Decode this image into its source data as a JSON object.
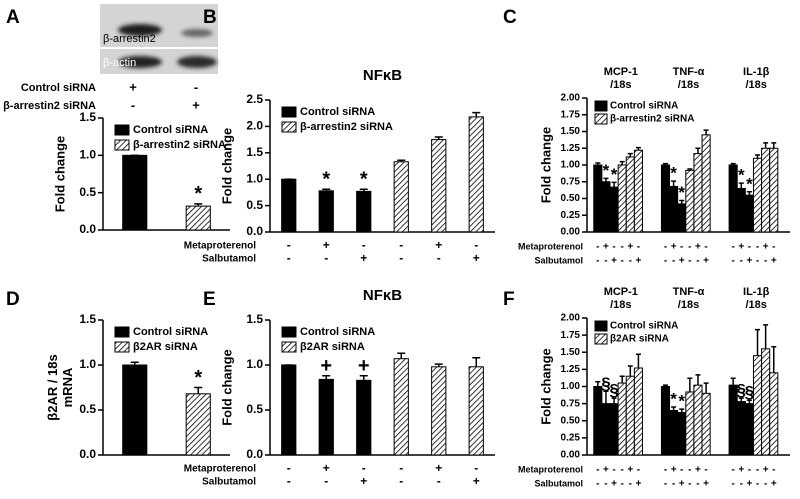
{
  "chart_data": [
    {
      "type": "bar",
      "panel_label": "A",
      "ylabel": [
        "Fold change"
      ],
      "blot": {
        "labels": [
          "β-arrestin2",
          "β-actin"
        ],
        "conditions": [
          {
            "name": "Control siRNA",
            "marks": [
              "+",
              "-"
            ]
          },
          {
            "name": "β-arrestin2 siRNA",
            "marks": [
              "-",
              "+"
            ]
          }
        ]
      },
      "categories": [
        null,
        null
      ],
      "series": [
        {
          "name": "Control siRNA",
          "color": "#000000",
          "values": [
            1.0,
            null
          ],
          "errors": [
            0,
            null
          ],
          "annotations": [
            null,
            null
          ]
        },
        {
          "name": "β-arrestin2 siRNA",
          "color": "#000000",
          "hatch": true,
          "values": [
            null,
            0.32
          ],
          "errors": [
            null,
            0.03
          ],
          "annotations": [
            null,
            "*"
          ]
        }
      ],
      "ylim": [
        0,
        1.5
      ],
      "yticks": [
        {
          "value": 0,
          "label": "0.0"
        },
        {
          "value": 0.5,
          "label": "0.5"
        },
        {
          "value": 1,
          "label": "1.0"
        },
        {
          "value": 1.5,
          "label": "1.5"
        }
      ],
      "legend": "upper left"
    },
    {
      "type": "bar",
      "panel_label": "B",
      "title": "NFκB",
      "ylabel": [
        "Fold change"
      ],
      "categories": [
        null,
        null,
        null,
        null,
        null,
        null
      ],
      "series": [
        {
          "name": "Control siRNA",
          "color": "#000000",
          "values": [
            1.0,
            0.78,
            0.77,
            null,
            null,
            null
          ],
          "errors": [
            0,
            0.03,
            0.04,
            null,
            null,
            null
          ],
          "annotations": [
            null,
            "*",
            "*",
            null,
            null,
            null
          ]
        },
        {
          "name": "β-arrestin2 siRNA",
          "color": "#000000",
          "hatch": true,
          "values": [
            null,
            null,
            null,
            1.33,
            1.75,
            2.18
          ],
          "errors": [
            null,
            null,
            null,
            0.03,
            0.05,
            0.08
          ],
          "annotations": [
            null,
            null,
            null,
            null,
            null,
            null
          ]
        }
      ],
      "ylim": [
        0,
        2.5
      ],
      "yticks": [
        {
          "value": 0,
          "label": "0.0"
        },
        {
          "value": 0.5,
          "label": "0.5"
        },
        {
          "value": 1,
          "label": "1.0"
        },
        {
          "value": 1.5,
          "label": "1.5"
        },
        {
          "value": 2,
          "label": "2.0"
        },
        {
          "value": 2.5,
          "label": "2.5"
        }
      ],
      "legend": "upper left",
      "conditions": [
        {
          "name": "Metaproterenol",
          "marks": [
            "-",
            "+",
            "-",
            "-",
            "+",
            "-"
          ]
        },
        {
          "name": "Salbutamol",
          "marks": [
            "-",
            "-",
            "+",
            "-",
            "-",
            "+"
          ]
        }
      ]
    },
    {
      "type": "bar",
      "panel_label": "C",
      "ylabel": [
        "Fold change"
      ],
      "group_labels": [
        [
          "MCP-1",
          "/18s"
        ],
        [
          "TNF-α",
          "/18s"
        ],
        [
          "IL-1β",
          "/18s"
        ]
      ],
      "categories": [
        null,
        null,
        null,
        null,
        null,
        null,
        null,
        null,
        null,
        null,
        null,
        null,
        null,
        null,
        null,
        null,
        null,
        null
      ],
      "series": [
        {
          "name": "Control siRNA",
          "color": "#000000",
          "values": [
            1.0,
            0.75,
            0.67,
            null,
            null,
            null,
            1.0,
            0.68,
            0.42,
            null,
            null,
            null,
            1.0,
            0.65,
            0.55,
            null,
            null,
            null
          ],
          "errors": [
            0.03,
            0.05,
            0.07,
            null,
            null,
            null,
            0.02,
            0.08,
            0.05,
            null,
            null,
            null,
            0.02,
            0.08,
            0.05,
            null,
            null,
            null
          ],
          "annotations": [
            null,
            "*",
            "*",
            null,
            null,
            null,
            null,
            "*",
            "*",
            null,
            null,
            null,
            null,
            "*",
            "*",
            null,
            null,
            null
          ]
        },
        {
          "name": "β-arrestin2 siRNA",
          "color": "#000000",
          "hatch": true,
          "values": [
            null,
            null,
            null,
            1.0,
            1.12,
            1.22,
            null,
            null,
            null,
            0.92,
            1.17,
            1.45,
            null,
            null,
            null,
            1.1,
            1.25,
            1.25
          ],
          "errors": [
            null,
            null,
            null,
            0.05,
            0.05,
            0.04,
            null,
            null,
            null,
            0.02,
            0.08,
            0.07,
            null,
            null,
            null,
            0.05,
            0.08,
            0.08
          ],
          "annotations": [
            null,
            null,
            null,
            null,
            null,
            null,
            null,
            null,
            null,
            null,
            null,
            null,
            null,
            null,
            null,
            null,
            null,
            null
          ]
        }
      ],
      "ylim": [
        0,
        2
      ],
      "yticks": [
        {
          "value": 0,
          "label": "0.00"
        },
        {
          "value": 0.25,
          "label": "0.25"
        },
        {
          "value": 0.5,
          "label": "0.50"
        },
        {
          "value": 0.75,
          "label": "0.75"
        },
        {
          "value": 1,
          "label": "1.00"
        },
        {
          "value": 1.25,
          "label": "1.25"
        },
        {
          "value": 1.5,
          "label": "1.50"
        },
        {
          "value": 1.75,
          "label": "1.75"
        },
        {
          "value": 2,
          "label": "2.00"
        }
      ],
      "legend": "upper left",
      "conditions": [
        {
          "name": "Metaproterenol",
          "marks": [
            "-",
            "+",
            "-",
            "-",
            "+",
            "-",
            "-",
            "+",
            "-",
            "-",
            "+",
            "-",
            "-",
            "+",
            "-",
            "-",
            "+",
            "-"
          ]
        },
        {
          "name": "Salbutamol",
          "marks": [
            "-",
            "-",
            "+",
            "-",
            "-",
            "+",
            "-",
            "-",
            "+",
            "-",
            "-",
            "+",
            "-",
            "-",
            "+",
            "-",
            "-",
            "+"
          ]
        }
      ]
    },
    {
      "type": "bar",
      "panel_label": "D",
      "ylabel": [
        "β2AR / 18s",
        "mRNA"
      ],
      "categories": [
        null,
        null
      ],
      "series": [
        {
          "name": "Control siRNA",
          "color": "#000000",
          "values": [
            1.0,
            null
          ],
          "errors": [
            0.03,
            null
          ],
          "annotations": [
            null,
            null
          ]
        },
        {
          "name": "β2AR siRNA",
          "color": "#000000",
          "hatch": true,
          "values": [
            null,
            0.68
          ],
          "errors": [
            null,
            0.07
          ],
          "annotations": [
            null,
            "*"
          ]
        }
      ],
      "ylim": [
        0,
        1.5
      ],
      "yticks": [
        {
          "value": 0,
          "label": "0.0"
        },
        {
          "value": 0.5,
          "label": "0.5"
        },
        {
          "value": 1,
          "label": "1.0"
        },
        {
          "value": 1.5,
          "label": "1.5"
        }
      ],
      "legend": "upper left"
    },
    {
      "type": "bar",
      "panel_label": "E",
      "title": "NFκB",
      "ylabel": [
        "Fold change"
      ],
      "categories": [
        null,
        null,
        null,
        null,
        null,
        null
      ],
      "series": [
        {
          "name": "Control siRNA",
          "color": "#000000",
          "values": [
            1.0,
            0.84,
            0.83,
            null,
            null,
            null
          ],
          "errors": [
            0,
            0.04,
            0.05,
            null,
            null,
            null
          ],
          "annotations": [
            null,
            "+",
            "+",
            null,
            null,
            null
          ]
        },
        {
          "name": "β2AR siRNA",
          "color": "#000000",
          "hatch": true,
          "values": [
            null,
            null,
            null,
            1.07,
            0.98,
            0.98
          ],
          "errors": [
            null,
            null,
            null,
            0.06,
            0.03,
            0.1
          ],
          "annotations": [
            null,
            null,
            null,
            null,
            null,
            null
          ]
        }
      ],
      "ylim": [
        0,
        1.5
      ],
      "yticks": [
        {
          "value": 0,
          "label": "0.0"
        },
        {
          "value": 0.5,
          "label": "0.5"
        },
        {
          "value": 1,
          "label": "1.0"
        },
        {
          "value": 1.5,
          "label": "1.5"
        }
      ],
      "legend": "upper left",
      "conditions": [
        {
          "name": "Metaproterenol",
          "marks": [
            "-",
            "+",
            "-",
            "-",
            "+",
            "-"
          ]
        },
        {
          "name": "Salbutamol",
          "marks": [
            "-",
            "-",
            "+",
            "-",
            "-",
            "+"
          ]
        }
      ]
    },
    {
      "type": "bar",
      "panel_label": "F",
      "ylabel": [
        "Fold change"
      ],
      "group_labels": [
        [
          "MCP-1",
          "/18s"
        ],
        [
          "TNF-α",
          "/18s"
        ],
        [
          "IL-1β",
          "/18s"
        ]
      ],
      "categories": [
        null,
        null,
        null,
        null,
        null,
        null,
        null,
        null,
        null,
        null,
        null,
        null,
        null,
        null,
        null,
        null,
        null,
        null
      ],
      "series": [
        {
          "name": "Control siRNA",
          "color": "#000000",
          "values": [
            1.0,
            0.75,
            0.75,
            null,
            null,
            null,
            1.0,
            0.65,
            0.62,
            null,
            null,
            null,
            1.02,
            0.78,
            0.75,
            null,
            null,
            null
          ],
          "errors": [
            0.07,
            0.18,
            0.08,
            null,
            null,
            null,
            0.02,
            0.05,
            0.05,
            null,
            null,
            null,
            0.1,
            0.05,
            0.05,
            null,
            null,
            null
          ],
          "annotations": [
            null,
            "§",
            "§",
            null,
            null,
            null,
            null,
            "*",
            "*",
            null,
            null,
            null,
            null,
            "§",
            "§",
            null,
            null,
            null
          ]
        },
        {
          "name": "β2AR siRNA",
          "color": "#000000",
          "hatch": true,
          "values": [
            null,
            null,
            null,
            1.05,
            1.15,
            1.27,
            null,
            null,
            null,
            0.92,
            1.02,
            0.9,
            null,
            null,
            null,
            1.45,
            1.55,
            1.2
          ],
          "errors": [
            null,
            null,
            null,
            0.1,
            0.15,
            0.2,
            null,
            null,
            null,
            0.2,
            0.15,
            0.15,
            null,
            null,
            null,
            0.38,
            0.35,
            0.38
          ],
          "annotations": [
            null,
            null,
            null,
            null,
            null,
            null,
            null,
            null,
            null,
            null,
            null,
            null,
            null,
            null,
            null,
            null,
            null,
            null
          ]
        }
      ],
      "ylim": [
        0,
        2
      ],
      "yticks": [
        {
          "value": 0,
          "label": "0.00"
        },
        {
          "value": 0.25,
          "label": "0.25"
        },
        {
          "value": 0.5,
          "label": "0.50"
        },
        {
          "value": 0.75,
          "label": "0.75"
        },
        {
          "value": 1,
          "label": "1.00"
        },
        {
          "value": 1.25,
          "label": "1.25"
        },
        {
          "value": 1.5,
          "label": "1.50"
        },
        {
          "value": 1.75,
          "label": "1.75"
        },
        {
          "value": 2,
          "label": "2.00"
        }
      ],
      "legend": "upper left",
      "conditions": [
        {
          "name": "Metaproterenol",
          "marks": [
            "-",
            "+",
            "-",
            "-",
            "+",
            "-",
            "-",
            "+",
            "-",
            "-",
            "+",
            "-",
            "-",
            "+",
            "-",
            "-",
            "+",
            "-"
          ]
        },
        {
          "name": "Salbutamol",
          "marks": [
            "-",
            "-",
            "+",
            "-",
            "-",
            "+",
            "-",
            "-",
            "+",
            "-",
            "-",
            "+",
            "-",
            "-",
            "+",
            "-",
            "-",
            "+"
          ]
        }
      ]
    }
  ]
}
